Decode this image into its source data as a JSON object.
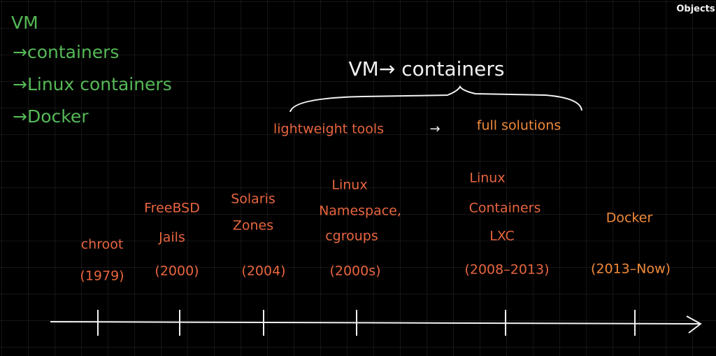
{
  "toolbar": {
    "button": "Objects"
  },
  "notes": [
    "VM",
    "→containers",
    "→Linux containers",
    "→Docker"
  ],
  "heading": "VM→ containers",
  "progression": {
    "from": "lightweight tools",
    "arrow": "→",
    "to": "full solutions"
  },
  "timeline": [
    {
      "label": [
        "chroot"
      ],
      "year": "(1979)"
    },
    {
      "label": [
        "FreeBSD",
        "Jails"
      ],
      "year": "(2000)"
    },
    {
      "label": [
        "Solaris",
        "Zones"
      ],
      "year": "(2004)"
    },
    {
      "label": [
        "Linux",
        "Namespace,",
        "cgroups"
      ],
      "year": "(2000s)"
    },
    {
      "label": [
        "Linux",
        "Containers",
        "LXC"
      ],
      "year": "(2008–2013)"
    },
    {
      "label": [
        "Docker"
      ],
      "year": "(2013–Now)"
    }
  ]
}
